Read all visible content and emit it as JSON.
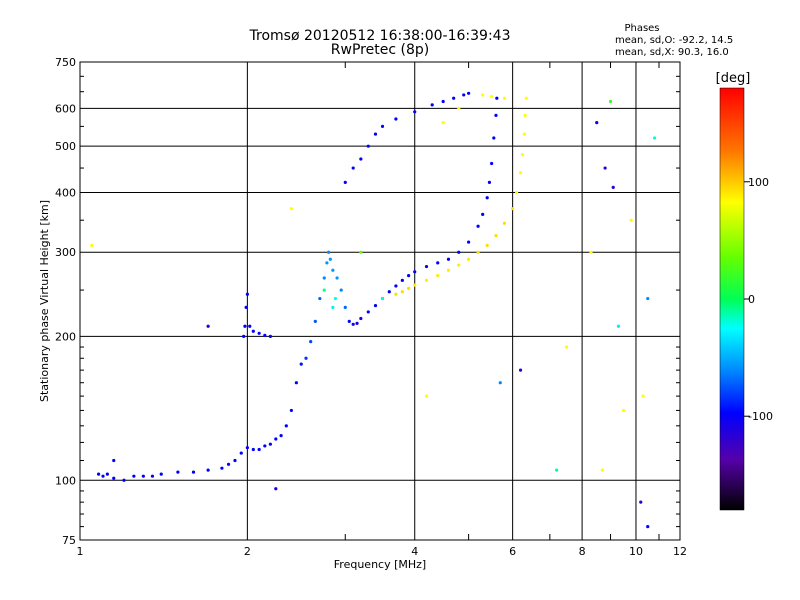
{
  "chart_data": {
    "type": "scatter",
    "title": "Tromsø 20120512 16:38:00-16:39:43",
    "subtitle": "RwPretec (8p)",
    "xlabel": "Frequency [MHz]",
    "ylabel": "Stationary phase Virtual Height [km]",
    "xscale": "log",
    "yscale": "log",
    "xlim": [
      1,
      12
    ],
    "ylim": [
      75,
      750
    ],
    "grid": true,
    "x_ticks": [
      1,
      2,
      4,
      6,
      8,
      10,
      12
    ],
    "x_tick_labels": [
      "1",
      "2",
      "4",
      "6",
      "8",
      "10",
      "12"
    ],
    "y_ticks": [
      75,
      100,
      200,
      300,
      400,
      500,
      600,
      750
    ],
    "y_tick_labels": [
      "75",
      "100",
      "200",
      "300",
      "400",
      "500",
      "600",
      "750"
    ],
    "phase_box": {
      "title": "Phases",
      "line1": "mean, sd,O: -92.2, 14.5",
      "line2": "mean, sd,X:  90.3, 16.0"
    },
    "colorbar": {
      "unit": "[deg]",
      "range": [
        -180,
        180
      ],
      "ticks": [
        100,
        0,
        -100
      ],
      "tick_labels": [
        "100",
        "0",
        "-100"
      ]
    },
    "series": [
      {
        "mode": "O",
        "points": [
          [
            1.08,
            103,
            -100
          ],
          [
            1.1,
            102,
            -100
          ],
          [
            1.12,
            103,
            -100
          ],
          [
            1.15,
            101,
            -100
          ],
          [
            1.2,
            100,
            -100
          ],
          [
            1.25,
            102,
            -100
          ],
          [
            1.3,
            102,
            -100
          ],
          [
            1.35,
            102,
            -100
          ],
          [
            1.4,
            103,
            -100
          ],
          [
            1.5,
            104,
            -100
          ],
          [
            1.6,
            104,
            -100
          ],
          [
            1.7,
            105,
            -100
          ],
          [
            1.8,
            106,
            -100
          ],
          [
            1.85,
            108,
            -100
          ],
          [
            1.9,
            110,
            -100
          ],
          [
            1.95,
            114,
            -100
          ],
          [
            2.0,
            117,
            -100
          ],
          [
            2.05,
            116,
            -100
          ],
          [
            2.1,
            116,
            -100
          ],
          [
            2.15,
            118,
            -100
          ],
          [
            2.2,
            119,
            -100
          ],
          [
            2.25,
            122,
            -100
          ],
          [
            2.3,
            124,
            -100
          ],
          [
            2.35,
            130,
            -100
          ],
          [
            2.4,
            140,
            -100
          ],
          [
            2.45,
            160,
            -100
          ],
          [
            2.5,
            175,
            -95
          ],
          [
            2.55,
            180,
            -85
          ],
          [
            2.6,
            195,
            -80
          ],
          [
            2.65,
            215,
            -75
          ],
          [
            2.7,
            240,
            -70
          ],
          [
            2.75,
            265,
            -60
          ],
          [
            2.78,
            285,
            -55
          ],
          [
            2.8,
            300,
            -60
          ],
          [
            2.82,
            290,
            -55
          ],
          [
            2.85,
            275,
            -55
          ],
          [
            2.9,
            265,
            -55
          ],
          [
            2.95,
            250,
            -60
          ],
          [
            3.0,
            230,
            -70
          ],
          [
            3.05,
            215,
            -100
          ],
          [
            3.1,
            212,
            -110
          ],
          [
            3.15,
            213,
            -110
          ],
          [
            3.2,
            218,
            -110
          ],
          [
            3.3,
            225,
            -100
          ],
          [
            3.4,
            232,
            -100
          ],
          [
            3.5,
            240,
            -100
          ],
          [
            3.6,
            248,
            -100
          ],
          [
            3.7,
            255,
            -100
          ],
          [
            3.8,
            262,
            -100
          ],
          [
            3.9,
            268,
            -100
          ],
          [
            4.0,
            273,
            -100
          ],
          [
            4.2,
            280,
            -100
          ],
          [
            4.4,
            285,
            -100
          ],
          [
            4.6,
            290,
            -100
          ],
          [
            4.8,
            300,
            -100
          ],
          [
            5.0,
            315,
            -100
          ],
          [
            5.2,
            340,
            -100
          ],
          [
            5.3,
            360,
            -100
          ],
          [
            5.4,
            390,
            -100
          ],
          [
            5.45,
            420,
            -100
          ],
          [
            5.5,
            460,
            -100
          ],
          [
            5.55,
            520,
            -100
          ],
          [
            5.6,
            580,
            -100
          ],
          [
            5.62,
            630,
            -100
          ],
          [
            1.97,
            200,
            -100
          ],
          [
            1.98,
            210,
            -100
          ],
          [
            1.99,
            230,
            -100
          ],
          [
            2.0,
            245,
            -100
          ],
          [
            2.02,
            210,
            -100
          ],
          [
            2.05,
            205,
            -100
          ],
          [
            2.1,
            203,
            -100
          ],
          [
            2.15,
            201,
            -100
          ],
          [
            2.2,
            200,
            -100
          ],
          [
            3.0,
            420,
            -100
          ],
          [
            3.1,
            450,
            -100
          ],
          [
            3.2,
            470,
            -100
          ],
          [
            3.3,
            500,
            -100
          ],
          [
            3.4,
            530,
            -100
          ],
          [
            3.5,
            550,
            -100
          ],
          [
            3.7,
            570,
            -100
          ],
          [
            4.0,
            590,
            -100
          ],
          [
            4.3,
            610,
            -100
          ],
          [
            4.5,
            620,
            -100
          ],
          [
            4.7,
            630,
            -100
          ],
          [
            4.9,
            640,
            -100
          ],
          [
            5.0,
            645,
            -100
          ],
          [
            1.15,
            110,
            -100
          ],
          [
            2.25,
            96,
            -110
          ],
          [
            1.7,
            210,
            -110
          ],
          [
            8.8,
            450,
            -120
          ],
          [
            9.1,
            410,
            -120
          ],
          [
            8.5,
            560,
            -100
          ],
          [
            10.2,
            90,
            -120
          ],
          [
            10.5,
            80,
            -100
          ],
          [
            6.2,
            170,
            -120
          ]
        ]
      },
      {
        "mode": "X",
        "points": [
          [
            3.7,
            245,
            110
          ],
          [
            3.8,
            248,
            110
          ],
          [
            3.9,
            252,
            110
          ],
          [
            4.0,
            256,
            105
          ],
          [
            4.2,
            262,
            105
          ],
          [
            4.4,
            268,
            105
          ],
          [
            4.6,
            275,
            105
          ],
          [
            4.8,
            282,
            105
          ],
          [
            5.0,
            290,
            105
          ],
          [
            5.2,
            300,
            110
          ],
          [
            5.4,
            310,
            110
          ],
          [
            5.6,
            325,
            110
          ],
          [
            5.8,
            345,
            110
          ],
          [
            6.0,
            370,
            110
          ],
          [
            6.1,
            400,
            100
          ],
          [
            6.2,
            440,
            100
          ],
          [
            6.25,
            480,
            100
          ],
          [
            6.3,
            530,
            100
          ],
          [
            6.32,
            580,
            100
          ],
          [
            6.35,
            630,
            100
          ],
          [
            5.3,
            640,
            100
          ],
          [
            5.5,
            635,
            100
          ],
          [
            4.8,
            600,
            100
          ],
          [
            4.5,
            560,
            100
          ],
          [
            2.4,
            370,
            100
          ],
          [
            8.3,
            300,
            100
          ],
          [
            9.8,
            350,
            100
          ],
          [
            9.5,
            140,
            100
          ],
          [
            10.3,
            150,
            100
          ],
          [
            5.8,
            630,
            100
          ],
          [
            7.5,
            190,
            100
          ],
          [
            8.7,
            105,
            100
          ],
          [
            4.2,
            150,
            100
          ]
        ]
      },
      {
        "mode": "other",
        "points": [
          [
            1.05,
            310,
            100
          ],
          [
            2.85,
            230,
            -30
          ],
          [
            2.88,
            240,
            -20
          ],
          [
            2.75,
            250,
            -10
          ],
          [
            3.5,
            240,
            -20
          ],
          [
            7.2,
            105,
            -10
          ],
          [
            9.3,
            210,
            -30
          ],
          [
            10.8,
            520,
            -20
          ],
          [
            9.0,
            620,
            20
          ],
          [
            10.5,
            240,
            -60
          ],
          [
            3.2,
            300,
            40
          ],
          [
            5.7,
            160,
            -60
          ]
        ]
      }
    ]
  }
}
